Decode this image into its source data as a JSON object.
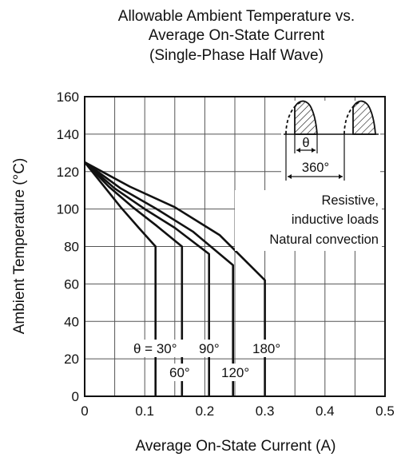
{
  "chart_data": {
    "type": "line",
    "title": [
      "Allowable Ambient Temperature vs.",
      "Average On-State Current",
      "(Single-Phase Half Wave)"
    ],
    "xlabel": "Average On-State Current  (A)",
    "ylabel": "Ambient Temperature  (°C)",
    "xlim": [
      0,
      0.5
    ],
    "ylim": [
      0,
      160
    ],
    "xticks": [
      0,
      0.1,
      0.2,
      0.3,
      0.4,
      0.5
    ],
    "xtick_labels": [
      "0",
      "0.1",
      "0.2",
      "0.3",
      "0.4",
      "0.5"
    ],
    "yticks": [
      0,
      20,
      40,
      60,
      80,
      100,
      120,
      140,
      160
    ],
    "ytick_labels": [
      "0",
      "20",
      "40",
      "60",
      "80",
      "100",
      "120",
      "140",
      "160"
    ],
    "xgrid_minor": 0.05,
    "grid": true,
    "series": [
      {
        "name": "θ = 30°",
        "x": [
          0,
          0.03,
          0.06,
          0.09,
          0.118,
          0.118
        ],
        "y": [
          125,
          113,
          101,
          90,
          80,
          0
        ]
      },
      {
        "name": "60°",
        "x": [
          0,
          0.04,
          0.08,
          0.12,
          0.162,
          0.162
        ],
        "y": [
          125,
          112,
          101,
          91,
          80,
          0
        ]
      },
      {
        "name": "90°",
        "x": [
          0,
          0.05,
          0.1,
          0.15,
          0.207,
          0.207
        ],
        "y": [
          125,
          111,
          100,
          90,
          76,
          0
        ]
      },
      {
        "name": "120°",
        "x": [
          0,
          0.06,
          0.12,
          0.18,
          0.247,
          0.247
        ],
        "y": [
          125,
          111,
          100,
          88,
          70,
          0
        ]
      },
      {
        "name": "180°",
        "x": [
          0,
          0.075,
          0.15,
          0.225,
          0.3,
          0.3
        ],
        "y": [
          125,
          112,
          101,
          86,
          62,
          0
        ]
      }
    ],
    "annotations": {
      "theta": "θ",
      "period": "360°",
      "load_line1": "Resistive,",
      "load_line2": "inductive loads",
      "cooling": "Natural convection"
    }
  }
}
